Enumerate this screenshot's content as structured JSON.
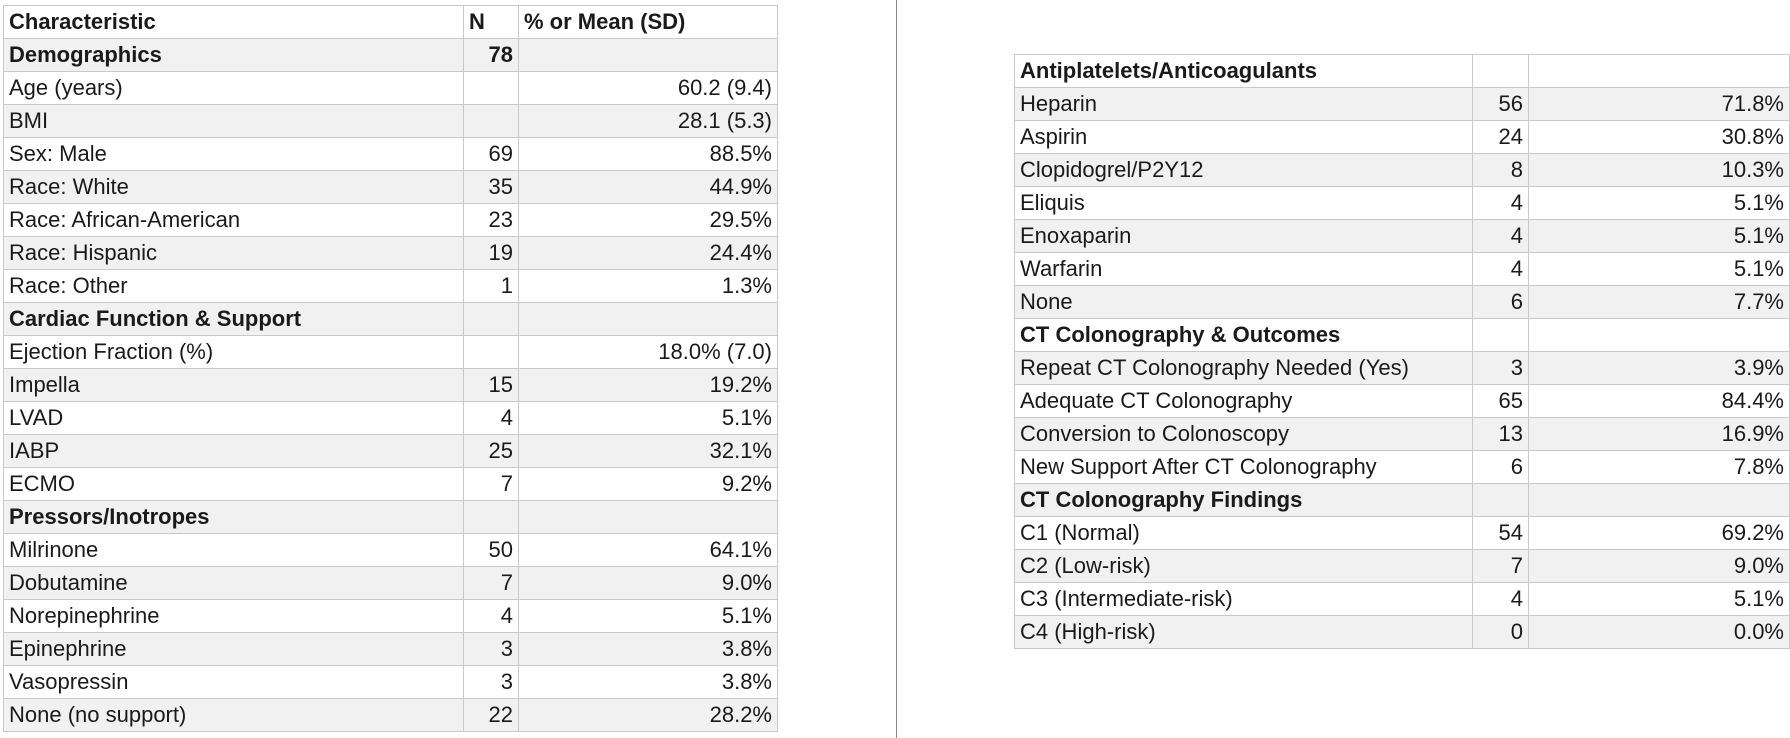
{
  "left_table": {
    "header": {
      "characteristic": "Characteristic",
      "n": "N",
      "value": "% or Mean (SD)"
    },
    "rows": [
      {
        "type": "section",
        "label": "Demographics",
        "n": "78",
        "value": ""
      },
      {
        "type": "data",
        "label": "Age (years)",
        "n": "",
        "value": "60.2 (9.4)"
      },
      {
        "type": "data",
        "label": "BMI",
        "n": "",
        "value": "28.1 (5.3)"
      },
      {
        "type": "data",
        "label": "Sex: Male",
        "n": "69",
        "value": "88.5%"
      },
      {
        "type": "data",
        "label": "Race: White",
        "n": "35",
        "value": "44.9%"
      },
      {
        "type": "data",
        "label": "Race: African-American",
        "n": "23",
        "value": "29.5%"
      },
      {
        "type": "data",
        "label": "Race: Hispanic",
        "n": "19",
        "value": "24.4%"
      },
      {
        "type": "data",
        "label": "Race: Other",
        "n": "1",
        "value": "1.3%"
      },
      {
        "type": "section",
        "label": "Cardiac Function & Support",
        "n": "",
        "value": ""
      },
      {
        "type": "data",
        "label": "Ejection Fraction (%)",
        "n": "",
        "value": "18.0% (7.0)"
      },
      {
        "type": "data",
        "label": "Impella",
        "n": "15",
        "value": "19.2%"
      },
      {
        "type": "data",
        "label": "LVAD",
        "n": "4",
        "value": "5.1%"
      },
      {
        "type": "data",
        "label": "IABP",
        "n": "25",
        "value": "32.1%"
      },
      {
        "type": "data",
        "label": "ECMO",
        "n": "7",
        "value": "9.2%"
      },
      {
        "type": "section",
        "label": "Pressors/Inotropes",
        "n": "",
        "value": ""
      },
      {
        "type": "data",
        "label": "Milrinone",
        "n": "50",
        "value": "64.1%"
      },
      {
        "type": "data",
        "label": "Dobutamine",
        "n": "7",
        "value": "9.0%"
      },
      {
        "type": "data",
        "label": "Norepinephrine",
        "n": "4",
        "value": "5.1%"
      },
      {
        "type": "data",
        "label": "Epinephrine",
        "n": "3",
        "value": "3.8%"
      },
      {
        "type": "data",
        "label": "Vasopressin",
        "n": "3",
        "value": "3.8%"
      },
      {
        "type": "data",
        "label": "None (no support)",
        "n": "22",
        "value": "28.2%"
      }
    ]
  },
  "right_table": {
    "rows": [
      {
        "type": "section",
        "label": "Antiplatelets/Anticoagulants",
        "n": "",
        "value": ""
      },
      {
        "type": "data",
        "label": "Heparin",
        "n": "56",
        "value": "71.8%"
      },
      {
        "type": "data",
        "label": "Aspirin",
        "n": "24",
        "value": "30.8%"
      },
      {
        "type": "data",
        "label": "Clopidogrel/P2Y12",
        "n": "8",
        "value": "10.3%"
      },
      {
        "type": "data",
        "label": "Eliquis",
        "n": "4",
        "value": "5.1%"
      },
      {
        "type": "data",
        "label": "Enoxaparin",
        "n": "4",
        "value": "5.1%"
      },
      {
        "type": "data",
        "label": "Warfarin",
        "n": "4",
        "value": "5.1%"
      },
      {
        "type": "data",
        "label": "None",
        "n": "6",
        "value": "7.7%"
      },
      {
        "type": "section",
        "label": "CT Colonography & Outcomes",
        "n": "",
        "value": ""
      },
      {
        "type": "data",
        "label": "Repeat CT Colonography Needed (Yes)",
        "n": "3",
        "value": "3.9%"
      },
      {
        "type": "data",
        "label": "Adequate CT Colonography",
        "n": "65",
        "value": "84.4%"
      },
      {
        "type": "data",
        "label": "Conversion to Colonoscopy",
        "n": "13",
        "value": "16.9%"
      },
      {
        "type": "data",
        "label": "New Support After CT Colonography",
        "n": "6",
        "value": "7.8%"
      },
      {
        "type": "section",
        "label": "CT Colonography Findings",
        "n": "",
        "value": ""
      },
      {
        "type": "data",
        "label": "C1 (Normal)",
        "n": "54",
        "value": "69.2%"
      },
      {
        "type": "data",
        "label": "C2 (Low-risk)",
        "n": "7",
        "value": "9.0%"
      },
      {
        "type": "data",
        "label": "C3 (Intermediate-risk)",
        "n": "4",
        "value": "5.1%"
      },
      {
        "type": "data",
        "label": "C4 (High-risk)",
        "n": "0",
        "value": "0.0%"
      }
    ]
  }
}
